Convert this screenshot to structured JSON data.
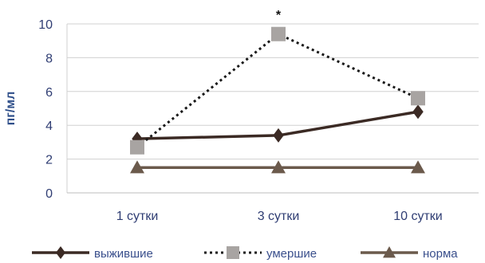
{
  "chart_data": {
    "type": "line",
    "ylabel": "пг/мл",
    "xlabel": "",
    "categories": [
      "1 сутки",
      "3 сутки",
      "10 сутки"
    ],
    "ylim": [
      0,
      10
    ],
    "yticks": [
      0,
      2,
      4,
      6,
      8,
      10
    ],
    "grid": "horizontal",
    "legend_position": "bottom",
    "series": [
      {
        "name": "выжившие",
        "values": [
          3.2,
          3.4,
          4.8
        ],
        "color": "#3b2a24",
        "dash": "solid",
        "marker": "diamond"
      },
      {
        "name": "умершие",
        "values": [
          2.7,
          9.4,
          5.6
        ],
        "color": "#a8a4a2",
        "line_color": "#1a1a1a",
        "dash": "dotted",
        "marker": "square"
      },
      {
        "name": "норма",
        "values": [
          1.5,
          1.5,
          1.5
        ],
        "color": "#6b5a4c",
        "dash": "solid",
        "marker": "triangle"
      }
    ],
    "annotations": [
      {
        "text": "*",
        "category": "3 сутки"
      }
    ]
  }
}
